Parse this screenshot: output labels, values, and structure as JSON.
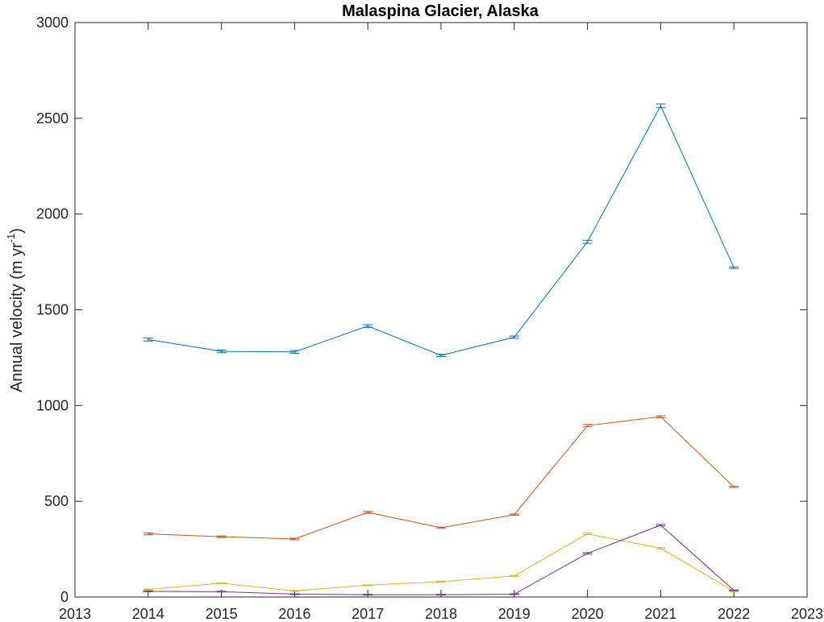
{
  "chart_data": {
    "type": "line",
    "title": "Malaspina Glacier, Alaska",
    "xlabel": "",
    "ylabel": "Annual velocity (m yr",
    "ylabel_sup": "-1",
    "ylabel_close": ")",
    "xlim": [
      2013,
      2023
    ],
    "ylim": [
      0,
      3000
    ],
    "xticks": [
      2013,
      2014,
      2015,
      2016,
      2017,
      2018,
      2019,
      2020,
      2021,
      2022,
      2023
    ],
    "yticks": [
      0,
      500,
      1000,
      1500,
      2000,
      2500,
      3000
    ],
    "grid": false,
    "legend": "none",
    "x": [
      2014,
      2015,
      2016,
      2017,
      2018,
      2019,
      2020,
      2021,
      2022
    ],
    "series": [
      {
        "color": "#0072BD",
        "values": [
          1345,
          1283,
          1280,
          1415,
          1262,
          1357,
          1855,
          2565,
          1720
        ],
        "err": [
          8,
          7,
          7,
          7,
          6,
          6,
          8,
          10,
          4
        ]
      },
      {
        "color": "#D95319",
        "values": [
          330,
          315,
          303,
          442,
          362,
          430,
          895,
          942,
          575
        ],
        "err": [
          5,
          4,
          4,
          5,
          3,
          3,
          6,
          5,
          3
        ]
      },
      {
        "color": "#EDB120",
        "values": [
          40,
          72,
          32,
          62,
          80,
          110,
          330,
          255,
          30
        ],
        "err": [
          2,
          2,
          2,
          2,
          2,
          2,
          4,
          4,
          2
        ]
      },
      {
        "color": "#7E2F8E",
        "values": [
          30,
          28,
          15,
          12,
          12,
          15,
          228,
          375,
          35
        ],
        "err": [
          2,
          2,
          2,
          2,
          2,
          2,
          4,
          4,
          2
        ]
      }
    ]
  }
}
